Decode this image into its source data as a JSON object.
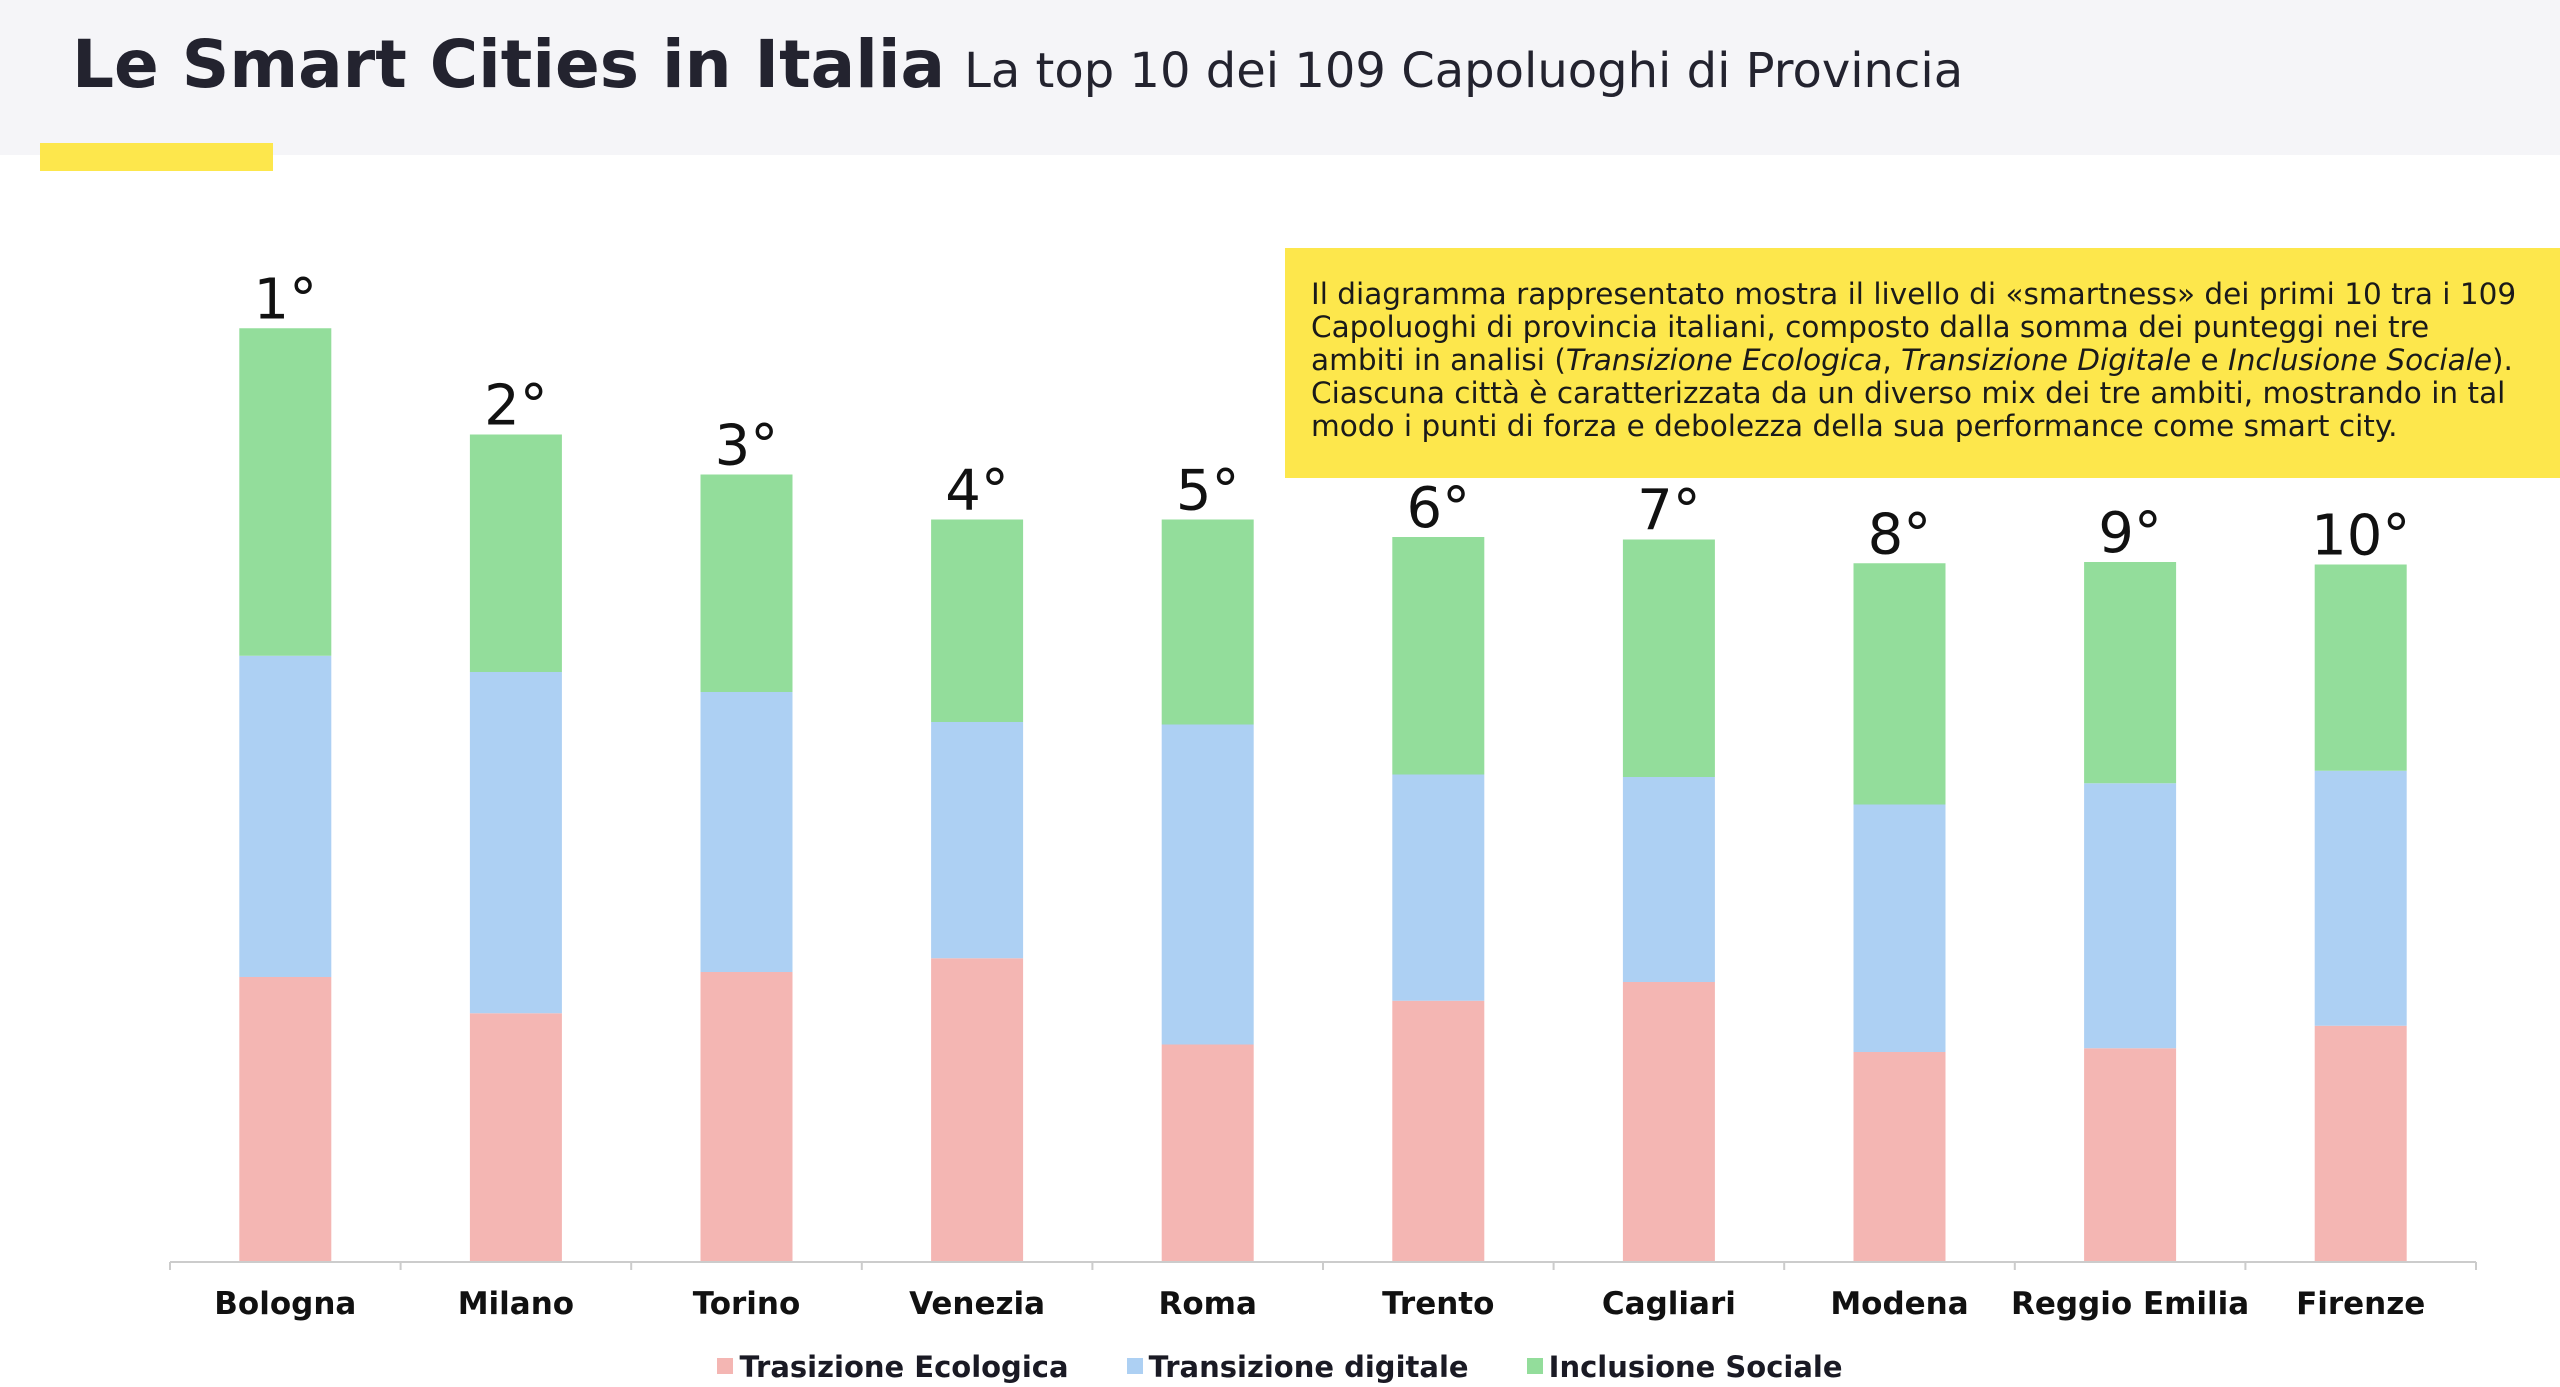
{
  "header": {
    "title": "Le Smart Cities in Italia",
    "subtitle": "La top 10 dei 109 Capoluoghi di Provincia"
  },
  "note": {
    "part1": "Il diagramma rappresentato mostra il livello di «smartness» dei primi 10 tra i 109 Capoluoghi di provincia italiani, composto dalla somma dei punteggi nei tre ambiti in analisi (",
    "term1": "Transizione Ecologica",
    "sep1": ", ",
    "term2": "Transizione Digitale",
    "sep2": " e ",
    "term3": "Inclusione Sociale",
    "part2": "). Ciascuna città è caratterizzata da un diverso mix dei tre ambiti, mostrando in tal modo i punti di forza e debolezza della sua performance come smart city."
  },
  "colors": {
    "ecologica": "#f4b6b3",
    "digitale": "#add0f3",
    "sociale": "#93dd9b",
    "axis": "#cccccc",
    "accent": "#fde74c"
  },
  "chart_data": {
    "type": "bar",
    "stacked": true,
    "categories": [
      "Bologna",
      "Milano",
      "Torino",
      "Venezia",
      "Roma",
      "Trento",
      "Cagliari",
      "Modena",
      "Reggio Emilia",
      "Firenze"
    ],
    "ranks": [
      "1°",
      "2°",
      "3°",
      "4°",
      "5°",
      "6°",
      "7°",
      "8°",
      "9°",
      "10°"
    ],
    "series": [
      {
        "name": "Trasizione Ecologica",
        "color": "#f4b6b3",
        "values": [
          228,
          199,
          232,
          243,
          174,
          209,
          224,
          168,
          171,
          189
        ]
      },
      {
        "name": "Transizione digitale",
        "color": "#add0f3",
        "values": [
          257,
          273,
          224,
          189,
          256,
          181,
          164,
          198,
          212,
          204
        ]
      },
      {
        "name": "Inclusione Sociale",
        "color": "#93dd9b",
        "values": [
          262,
          190,
          174,
          162,
          164,
          190,
          190,
          193,
          177,
          165
        ]
      }
    ],
    "ylim": [
      0,
      800
    ],
    "grid": false,
    "legend": "bottom-center"
  }
}
